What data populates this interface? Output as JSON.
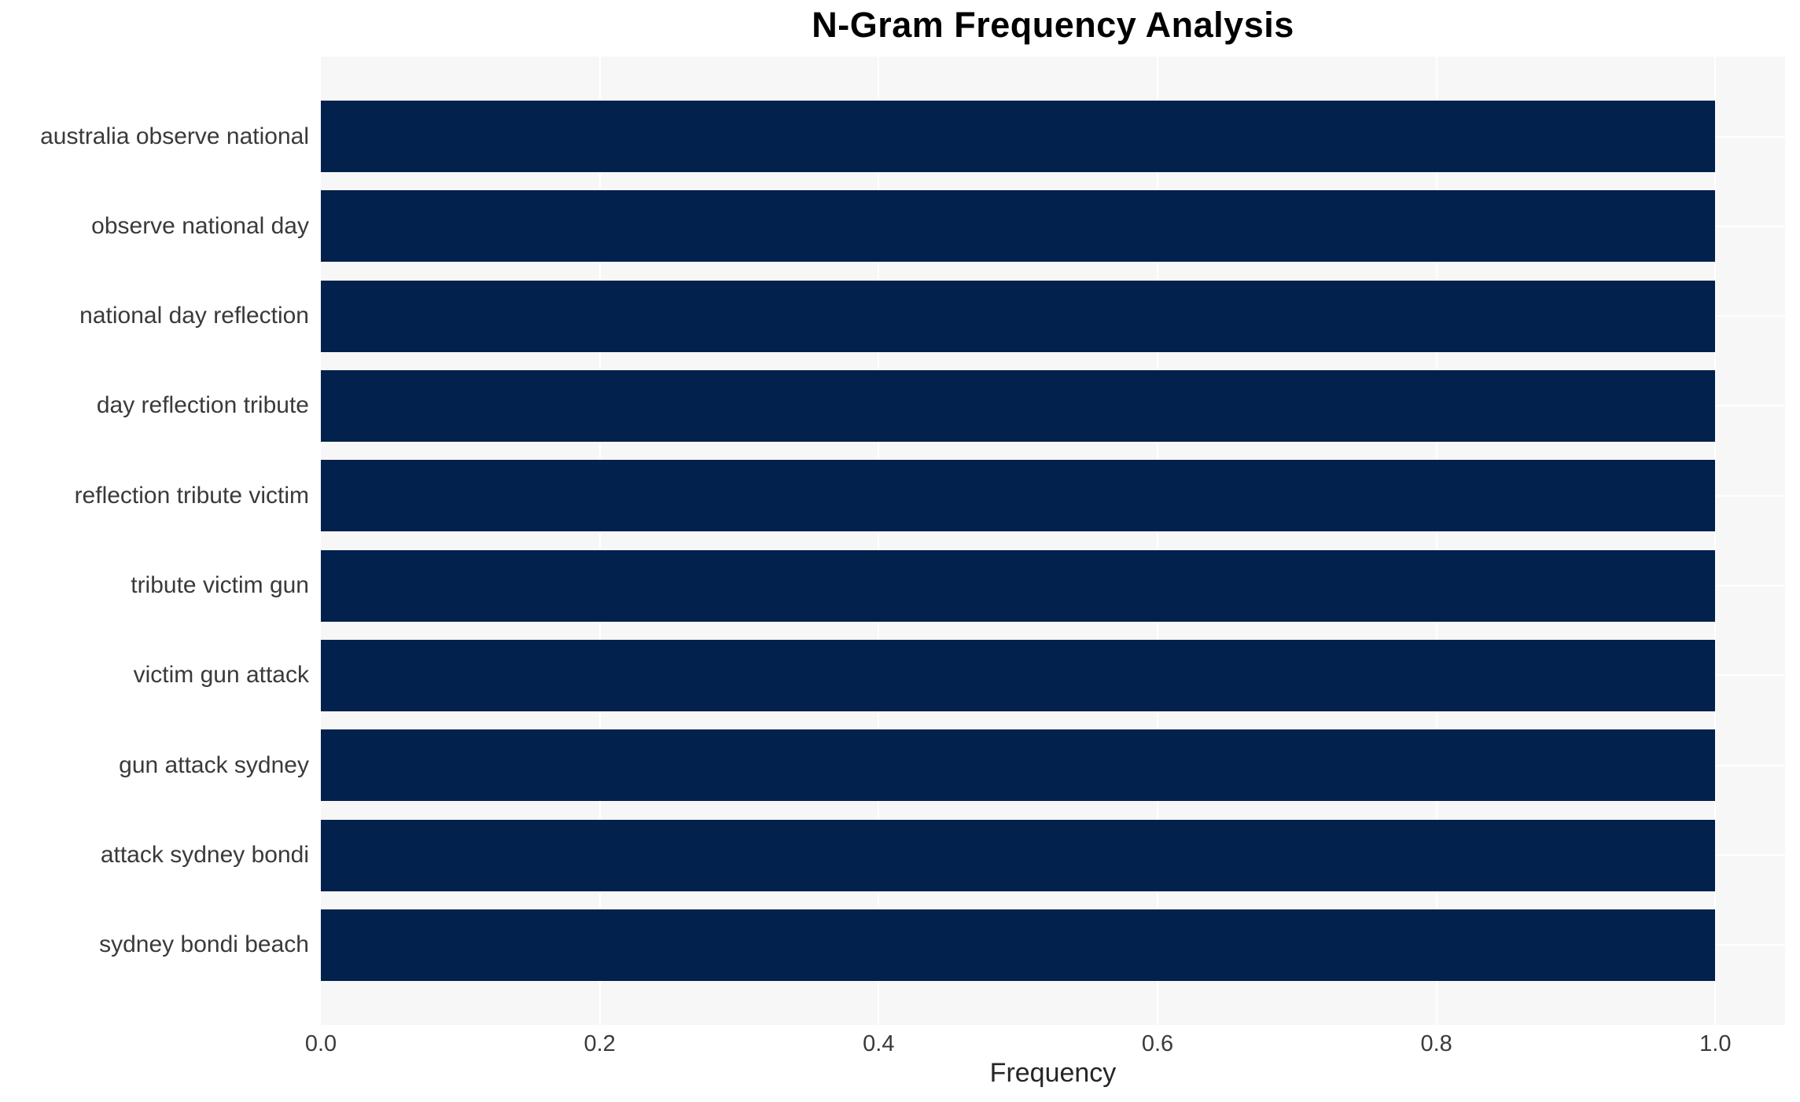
{
  "chart_data": {
    "type": "bar",
    "orientation": "horizontal",
    "title": "N-Gram Frequency Analysis",
    "xlabel": "Frequency",
    "ylabel": "",
    "categories": [
      "australia observe national",
      "observe national day",
      "national day reflection",
      "day reflection tribute",
      "reflection tribute victim",
      "tribute victim gun",
      "victim gun attack",
      "gun attack sydney",
      "attack sydney bondi",
      "sydney bondi beach"
    ],
    "values": [
      1.0,
      1.0,
      1.0,
      1.0,
      1.0,
      1.0,
      1.0,
      1.0,
      1.0,
      1.0
    ],
    "x_ticks": [
      0.0,
      0.2,
      0.4,
      0.6,
      0.8,
      1.0
    ],
    "x_tick_labels": [
      "0.0",
      "0.2",
      "0.4",
      "0.6",
      "0.8",
      "1.0"
    ],
    "xlim": [
      0,
      1.05
    ],
    "grid": true,
    "legend": "none",
    "colors": {
      "bar": "#02214c",
      "plot_background": "#f7f7f7",
      "figure_background": "#ffffff",
      "gridline": "#ffffff",
      "tick_text": "#3a3a3a",
      "title_text": "#000000"
    }
  }
}
